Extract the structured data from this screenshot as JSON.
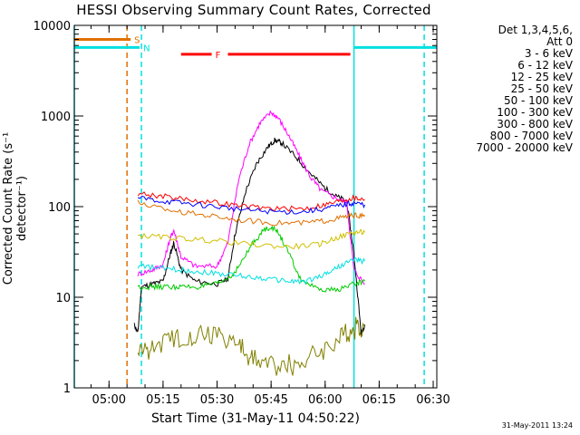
{
  "title": "HESSI Observing Summary Count Rates, Corrected",
  "timestamp": "31-May-2011 13:24",
  "chart_data": {
    "type": "line",
    "title": "HESSI Observing Summary Count Rates, Corrected",
    "xlabel": "Start Time (31-May-11 04:50:22)",
    "ylabel": "Corrected Count Rate (s⁻¹ detector⁻¹)",
    "y_scale": "log",
    "ylim": [
      1,
      10000
    ],
    "xlim": [
      "04:50:22",
      "06:31:00"
    ],
    "x_ticks": [
      "05:00",
      "05:15",
      "05:30",
      "05:45",
      "06:00",
      "06:15",
      "06:30"
    ],
    "y_ticks": [
      "1",
      "10",
      "100",
      "1000",
      "10000"
    ],
    "legend": {
      "position": "right",
      "header": [
        "Det 1,3,4,5,6,",
        "Att 0"
      ],
      "entries": [
        {
          "label": "3 - 6 keV",
          "color": "#000000"
        },
        {
          "label": "6 - 12 keV",
          "color": "#ff00ff"
        },
        {
          "label": "12 - 25 keV",
          "color": "#00cc00"
        },
        {
          "label": "25 - 50 keV",
          "color": "#00e0e0"
        },
        {
          "label": "50 - 100 keV",
          "color": "#d0c000"
        },
        {
          "label": "100 - 300 keV",
          "color": "#ff0000"
        },
        {
          "label": "300 - 800 keV",
          "color": "#0000ff"
        },
        {
          "label": "800 - 7000 keV",
          "color": "#e07000"
        },
        {
          "label": "7000 - 20000 keV",
          "color": "#808000"
        }
      ]
    },
    "flags": [
      {
        "label": "S",
        "color": "#e07000",
        "value": 7000,
        "intervals": [
          [
            "04:50:22",
            "05:06:00"
          ]
        ]
      },
      {
        "label": "N",
        "color": "#00e0e0",
        "value": 5700,
        "intervals": [
          [
            "04:50:22",
            "05:08:30"
          ],
          [
            "06:08:00",
            "06:31:00"
          ]
        ]
      },
      {
        "label": "F",
        "color": "#ff0000",
        "value": 4800,
        "intervals": [
          [
            "05:20:00",
            "05:28:30"
          ],
          [
            "05:33:00",
            "06:07:00"
          ]
        ]
      }
    ],
    "vertical_lines": [
      {
        "time": "04:50:22",
        "color": "#00e0e0",
        "style": "solid"
      },
      {
        "time": "05:05:00",
        "color": "#e07000",
        "style": "dashed"
      },
      {
        "time": "05:09:00",
        "color": "#00e0e0",
        "style": "dashed"
      },
      {
        "time": "06:08:00",
        "color": "#00e0e0",
        "style": "solid"
      },
      {
        "time": "06:27:30",
        "color": "#00e0e0",
        "style": "dashed"
      }
    ],
    "series": [
      {
        "name": "3 - 6 keV",
        "color": "#000000",
        "points": [
          [
            "05:07",
            5
          ],
          [
            "05:08",
            4
          ],
          [
            "05:09",
            13
          ],
          [
            "05:12",
            14
          ],
          [
            "05:15",
            15
          ],
          [
            "05:17",
            30
          ],
          [
            "05:18",
            40
          ],
          [
            "05:20",
            20
          ],
          [
            "05:24",
            15
          ],
          [
            "05:30",
            14
          ],
          [
            "05:33",
            16
          ],
          [
            "05:35",
            50
          ],
          [
            "05:38",
            150
          ],
          [
            "05:41",
            300
          ],
          [
            "05:44",
            450
          ],
          [
            "05:46",
            540
          ],
          [
            "05:48",
            500
          ],
          [
            "05:52",
            350
          ],
          [
            "05:56",
            230
          ],
          [
            "06:00",
            160
          ],
          [
            "06:03",
            130
          ],
          [
            "06:06",
            115
          ],
          [
            "06:08",
            30
          ],
          [
            "06:10",
            4
          ],
          [
            "06:11",
            5
          ]
        ]
      },
      {
        "name": "6 - 12 keV",
        "color": "#ff00ff",
        "points": [
          [
            "05:08",
            18
          ],
          [
            "05:12",
            20
          ],
          [
            "05:15",
            23
          ],
          [
            "05:17",
            45
          ],
          [
            "05:18",
            55
          ],
          [
            "05:20",
            28
          ],
          [
            "05:24",
            22
          ],
          [
            "05:30",
            22
          ],
          [
            "05:33",
            40
          ],
          [
            "05:36",
            200
          ],
          [
            "05:39",
            500
          ],
          [
            "05:42",
            850
          ],
          [
            "05:45",
            1100
          ],
          [
            "05:47",
            950
          ],
          [
            "05:50",
            600
          ],
          [
            "05:53",
            350
          ],
          [
            "05:56",
            210
          ],
          [
            "05:59",
            150
          ],
          [
            "06:03",
            125
          ],
          [
            "06:06",
            110
          ],
          [
            "06:08",
            20
          ],
          [
            "06:11",
            14
          ]
        ]
      },
      {
        "name": "12 - 25 keV",
        "color": "#00cc00",
        "points": [
          [
            "05:08",
            13
          ],
          [
            "05:12",
            13
          ],
          [
            "05:16",
            13
          ],
          [
            "05:20",
            13
          ],
          [
            "05:25",
            13
          ],
          [
            "05:30",
            14
          ],
          [
            "05:34",
            17
          ],
          [
            "05:37",
            25
          ],
          [
            "05:40",
            40
          ],
          [
            "05:43",
            55
          ],
          [
            "05:45",
            60
          ],
          [
            "05:47",
            52
          ],
          [
            "05:50",
            30
          ],
          [
            "05:53",
            16
          ],
          [
            "05:58",
            12
          ],
          [
            "06:03",
            12
          ],
          [
            "06:08",
            14
          ],
          [
            "06:11",
            15
          ]
        ]
      },
      {
        "name": "25 - 50 keV",
        "color": "#00e0e0",
        "points": [
          [
            "05:08",
            22
          ],
          [
            "05:14",
            21
          ],
          [
            "05:20",
            20
          ],
          [
            "05:26",
            19
          ],
          [
            "05:32",
            18
          ],
          [
            "05:38",
            17
          ],
          [
            "05:44",
            16
          ],
          [
            "05:50",
            15
          ],
          [
            "05:55",
            15
          ],
          [
            "06:00",
            18
          ],
          [
            "06:04",
            22
          ],
          [
            "06:08",
            26
          ],
          [
            "06:11",
            25
          ]
        ]
      },
      {
        "name": "50 - 100 keV",
        "color": "#d0c000",
        "points": [
          [
            "05:08",
            48
          ],
          [
            "05:15",
            46
          ],
          [
            "05:22",
            44
          ],
          [
            "05:30",
            42
          ],
          [
            "05:40",
            38
          ],
          [
            "05:50",
            36
          ],
          [
            "05:58",
            38
          ],
          [
            "06:03",
            45
          ],
          [
            "06:08",
            52
          ],
          [
            "06:11",
            52
          ]
        ]
      },
      {
        "name": "100 - 300 keV",
        "color": "#ff0000",
        "points": [
          [
            "05:08",
            140
          ],
          [
            "05:15",
            130
          ],
          [
            "05:22",
            120
          ],
          [
            "05:30",
            110
          ],
          [
            "05:38",
            100
          ],
          [
            "05:46",
            95
          ],
          [
            "05:54",
            95
          ],
          [
            "06:00",
            105
          ],
          [
            "06:05",
            118
          ],
          [
            "06:08",
            125
          ],
          [
            "06:11",
            120
          ]
        ]
      },
      {
        "name": "300 - 800 keV",
        "color": "#0000ff",
        "points": [
          [
            "05:08",
            125
          ],
          [
            "05:15",
            115
          ],
          [
            "05:22",
            108
          ],
          [
            "05:30",
            100
          ],
          [
            "05:38",
            92
          ],
          [
            "05:46",
            88
          ],
          [
            "05:54",
            88
          ],
          [
            "06:00",
            95
          ],
          [
            "06:05",
            105
          ],
          [
            "06:08",
            110
          ],
          [
            "06:11",
            105
          ]
        ]
      },
      {
        "name": "800 - 7000 keV",
        "color": "#e07000",
        "points": [
          [
            "05:08",
            110
          ],
          [
            "05:15",
            95
          ],
          [
            "05:22",
            85
          ],
          [
            "05:30",
            78
          ],
          [
            "05:38",
            70
          ],
          [
            "05:46",
            66
          ],
          [
            "05:54",
            66
          ],
          [
            "06:00",
            70
          ],
          [
            "06:05",
            76
          ],
          [
            "06:08",
            80
          ],
          [
            "06:11",
            78
          ]
        ]
      },
      {
        "name": "7000 - 20000 keV",
        "color": "#808000",
        "points": [
          [
            "05:08",
            2.5
          ],
          [
            "05:12",
            2.8
          ],
          [
            "05:18",
            3.5
          ],
          [
            "05:24",
            4
          ],
          [
            "05:30",
            4
          ],
          [
            "05:36",
            3
          ],
          [
            "05:40",
            2
          ],
          [
            "05:46",
            1.8
          ],
          [
            "05:52",
            1.8
          ],
          [
            "05:58",
            2.5
          ],
          [
            "06:04",
            3.5
          ],
          [
            "06:08",
            4.5
          ],
          [
            "06:11",
            5
          ]
        ]
      }
    ]
  }
}
